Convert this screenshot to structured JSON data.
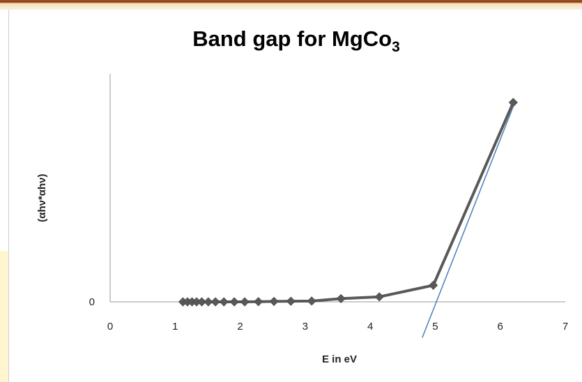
{
  "colors": {
    "series_line": "#595959",
    "series_marker": "#595959",
    "tangent_line": "#4a7ebb",
    "axis": "#9a9a9a"
  },
  "chart_data": {
    "type": "scatter",
    "title_main": "Band gap for MgCo",
    "title_subscript": "3",
    "xlabel": "E in eV",
    "ylabel": "(αhν*αhν)",
    "xlim": [
      0,
      7
    ],
    "ylim": [
      0,
      1
    ],
    "x_ticks": [
      "0",
      "1",
      "2",
      "3",
      "4",
      "5",
      "6",
      "7"
    ],
    "y_ticks": [
      "0"
    ],
    "grid": false,
    "legend": "none",
    "series": [
      {
        "marker": "diamond",
        "points": [
          [
            1.12,
            0.0
          ],
          [
            1.19,
            0.0
          ],
          [
            1.26,
            0.0
          ],
          [
            1.33,
            0.0
          ],
          [
            1.41,
            0.0
          ],
          [
            1.51,
            0.0
          ],
          [
            1.62,
            0.0
          ],
          [
            1.75,
            0.0
          ],
          [
            1.91,
            0.0
          ],
          [
            2.07,
            0.0
          ],
          [
            2.28,
            0.001
          ],
          [
            2.52,
            0.002
          ],
          [
            2.78,
            0.003
          ],
          [
            3.1,
            0.004
          ],
          [
            3.55,
            0.016
          ],
          [
            4.14,
            0.025
          ],
          [
            4.97,
            0.083
          ],
          [
            6.2,
            1.0
          ]
        ]
      }
    ],
    "tangent_line": {
      "points": [
        [
          4.8,
          -0.18
        ],
        [
          6.2,
          0.98
        ]
      ]
    }
  }
}
